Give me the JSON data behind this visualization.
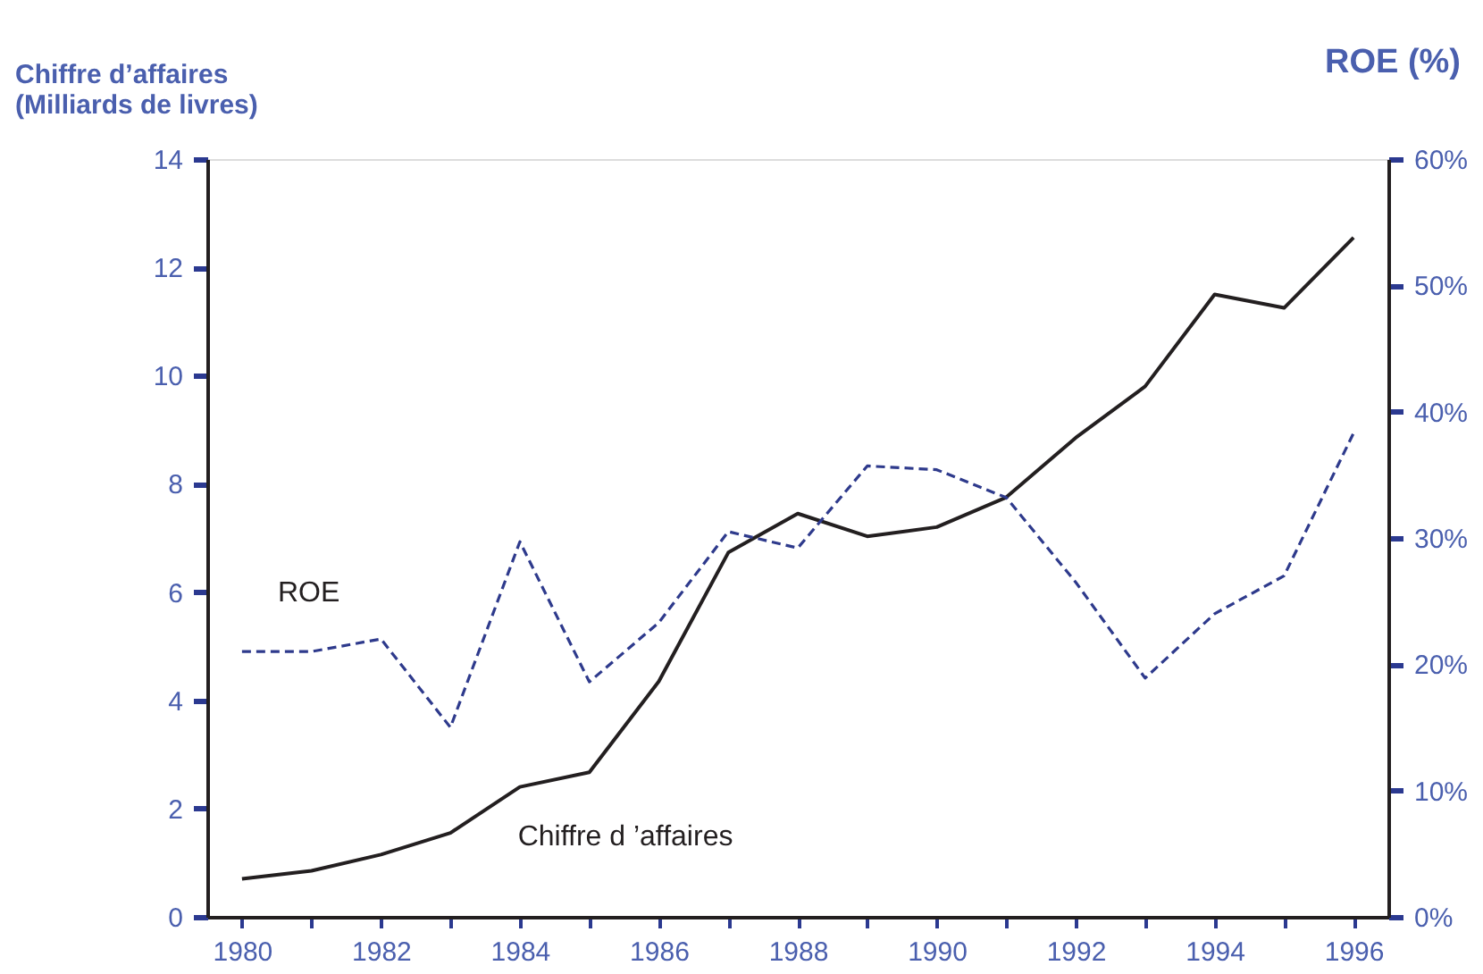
{
  "chart_data": {
    "type": "line",
    "xlabel": null,
    "ylabel": "Chiffre d’affaires\n(Milliards de livres)",
    "y2label": "ROE (%)",
    "x": [
      1980,
      1981,
      1982,
      1983,
      1984,
      1985,
      1986,
      1987,
      1988,
      1989,
      1990,
      1991,
      1992,
      1993,
      1994,
      1995,
      1996
    ],
    "series": [
      {
        "name": "Chiffre d ’affaires",
        "color": "#231f20",
        "line_style": "solid",
        "values": [
          0.7,
          0.85,
          1.15,
          1.55,
          2.4,
          2.67,
          4.35,
          6.73,
          7.45,
          7.03,
          7.2,
          7.75,
          8.85,
          9.8,
          11.5,
          11.25,
          12.55
        ]
      },
      {
        "name": "ROE",
        "color": "#2e3a8c",
        "line_style": "dashed",
        "axis": "y2",
        "values": [
          21,
          21,
          22,
          15,
          29.7,
          18.6,
          23.3,
          30.5,
          29.2,
          35.7,
          35.4,
          33.2,
          26.5,
          18.9,
          24,
          27,
          38.3
        ]
      }
    ],
    "xlim": [
      1979.5,
      1996.5
    ],
    "xticks": [
      1980,
      {
        "value": 1981,
        "label": null
      },
      1982,
      {
        "value": 1983,
        "label": null
      },
      1984,
      {
        "value": 1985,
        "label": null
      },
      1986,
      {
        "value": 1987,
        "label": null
      },
      1988,
      {
        "value": 1989,
        "label": null
      },
      1990,
      {
        "value": 1991,
        "label": null
      },
      1992,
      {
        "value": 1993,
        "label": null
      },
      1994,
      {
        "value": 1995,
        "label": null
      },
      1996
    ],
    "ylim": [
      0,
      14
    ],
    "yticks": [
      0,
      2,
      4,
      6,
      8,
      10,
      12,
      14
    ],
    "y2lim": [
      0,
      60
    ],
    "y2ticks": [
      {
        "value": 0,
        "label": "0%"
      },
      {
        "value": 10,
        "label": "10%"
      },
      {
        "value": 20,
        "label": "20%"
      },
      {
        "value": 30,
        "label": "30%"
      },
      {
        "value": 40,
        "label": "40%"
      },
      {
        "value": 50,
        "label": "50%"
      },
      {
        "value": 60,
        "label": "60%"
      }
    ],
    "grid": false,
    "marker": "none"
  }
}
